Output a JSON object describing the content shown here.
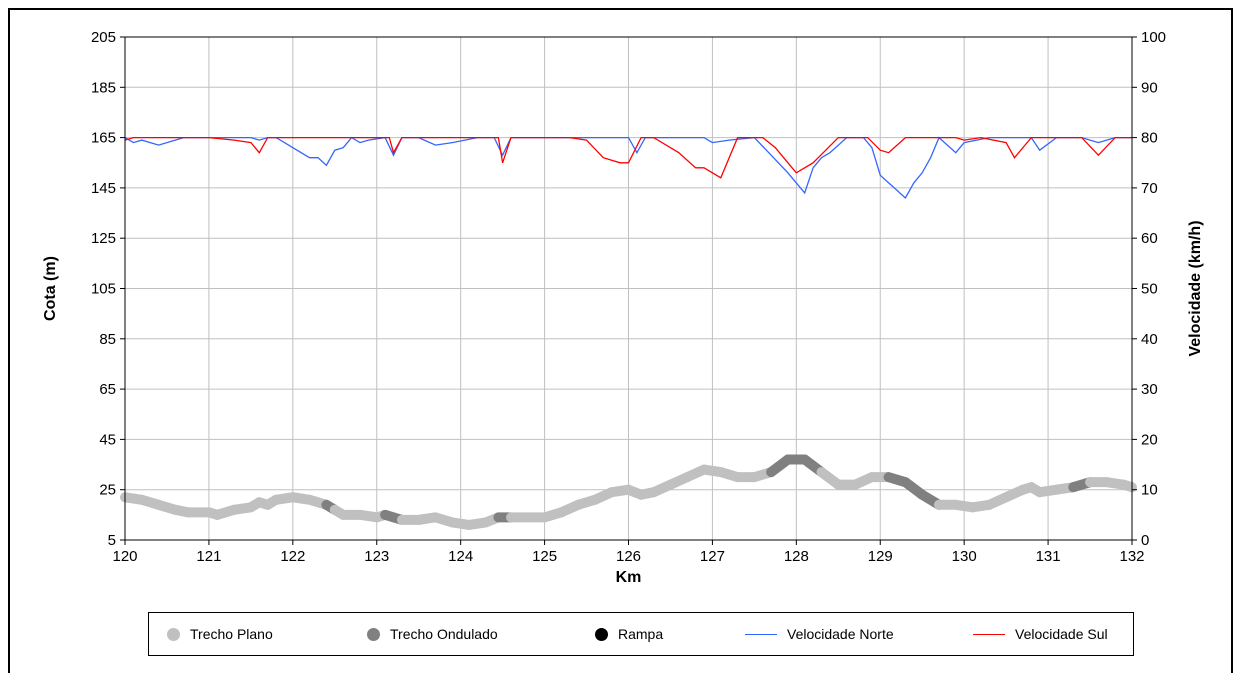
{
  "chart_data": {
    "type": "line",
    "xlabel": "Km",
    "ylabel_left": "Cota (m)",
    "ylabel_right": "Velocidade (km/h)",
    "xlim": [
      120,
      132
    ],
    "ylim_left": [
      5,
      205
    ],
    "ylim_right": [
      0,
      100
    ],
    "x_ticks": [
      "120",
      "121",
      "122",
      "123",
      "124",
      "125",
      "126",
      "127",
      "128",
      "129",
      "130",
      "131",
      "132"
    ],
    "y_left_ticks": [
      "5",
      "25",
      "45",
      "65",
      "85",
      "105",
      "125",
      "145",
      "165",
      "185",
      "205"
    ],
    "y_right_ticks": [
      "0",
      "10",
      "20",
      "30",
      "40",
      "50",
      "60",
      "70",
      "80",
      "90",
      "100"
    ],
    "grid": true,
    "legend_position": "bottom",
    "colors": {
      "trecho_plano": "#c0c0c0",
      "trecho_ondulado": "#808080",
      "rampa": "#000000",
      "velocidade_norte": "#3366ff",
      "velocidade_sul": "#ff0000"
    },
    "elevation": {
      "x": [
        120,
        120.2,
        120.4,
        120.6,
        120.75,
        121,
        121.1,
        121.3,
        121.5,
        121.6,
        121.7,
        121.8,
        122,
        122.2,
        122.4,
        122.5,
        122.6,
        122.8,
        123,
        123.1,
        123.2,
        123.3,
        123.5,
        123.7,
        123.9,
        124.1,
        124.3,
        124.45,
        124.6,
        124.8,
        125,
        125.2,
        125.4,
        125.6,
        125.8,
        126,
        126.15,
        126.3,
        126.5,
        126.7,
        126.9,
        127.1,
        127.3,
        127.5,
        127.7,
        127.9,
        128.1,
        128.3,
        128.5,
        128.7,
        128.9,
        129.1,
        129.3,
        129.5,
        129.7,
        129.9,
        130.1,
        130.3,
        130.5,
        130.7,
        130.8,
        130.9,
        131.1,
        131.3,
        131.5,
        131.7,
        131.9,
        132
      ],
      "y": [
        22,
        21,
        19,
        17,
        16,
        16,
        15,
        17,
        18,
        20,
        19,
        21,
        22,
        21,
        19,
        17,
        15,
        15,
        14,
        15,
        14,
        13,
        13,
        14,
        12,
        11,
        12,
        14,
        14,
        14,
        14,
        16,
        19,
        21,
        24,
        25,
        23,
        24,
        27,
        30,
        33,
        32,
        30,
        30,
        32,
        37,
        37,
        32,
        27,
        27,
        30,
        30,
        28,
        23,
        19,
        19,
        18,
        19,
        22,
        25,
        26,
        24,
        25,
        26,
        28,
        28,
        27,
        26
      ],
      "segments": [
        "Trecho Plano",
        "Trecho Plano",
        "Trecho Plano",
        "Trecho Plano",
        "Trecho Plano",
        "Trecho Plano",
        "Trecho Plano",
        "Trecho Plano",
        "Trecho Plano",
        "Trecho Plano",
        "Trecho Plano",
        "Trecho Plano",
        "Trecho Plano",
        "Trecho Plano",
        "Trecho Ondulado",
        "Trecho Plano",
        "Trecho Plano",
        "Trecho Plano",
        "Trecho Plano",
        "Trecho Ondulado",
        "Trecho Ondulado",
        "Trecho Plano",
        "Trecho Plano",
        "Trecho Plano",
        "Trecho Plano",
        "Trecho Plano",
        "Trecho Plano",
        "Trecho Ondulado",
        "Trecho Plano",
        "Trecho Plano",
        "Trecho Plano",
        "Trecho Plano",
        "Trecho Plano",
        "Trecho Plano",
        "Trecho Plano",
        "Trecho Plano",
        "Trecho Plano",
        "Trecho Plano",
        "Trecho Plano",
        "Trecho Plano",
        "Trecho Plano",
        "Trecho Plano",
        "Trecho Plano",
        "Trecho Plano",
        "Trecho Ondulado",
        "Trecho Ondulado",
        "Trecho Ondulado",
        "Trecho Plano",
        "Trecho Plano",
        "Trecho Plano",
        "Trecho Plano",
        "Trecho Ondulado",
        "Trecho Ondulado",
        "Trecho Ondulado",
        "Trecho Plano",
        "Trecho Plano",
        "Trecho Plano",
        "Trecho Plano",
        "Trecho Plano",
        "Trecho Plano",
        "Trecho Plano",
        "Trecho Plano",
        "Trecho Plano",
        "Trecho Ondulado",
        "Trecho Plano",
        "Trecho Plano",
        "Trecho Plano"
      ]
    },
    "series": [
      {
        "name": "Velocidade Norte",
        "x": [
          120,
          120.1,
          120.2,
          120.4,
          120.6,
          120.7,
          121,
          121.2,
          121.5,
          121.6,
          121.7,
          121.8,
          121.9,
          122,
          122.2,
          122.3,
          122.4,
          122.5,
          122.6,
          122.7,
          122.8,
          122.9,
          123.1,
          123.2,
          123.3,
          123.5,
          123.7,
          123.9,
          124.2,
          124.4,
          124.5,
          124.6,
          124.8,
          125,
          125.3,
          125.6,
          126,
          126.1,
          126.2,
          126.5,
          126.9,
          127,
          127.2,
          127.5,
          127.9,
          128.0,
          128.1,
          128.2,
          128.3,
          128.4,
          128.6,
          128.8,
          128.9,
          129.0,
          129.3,
          129.4,
          129.5,
          129.6,
          129.7,
          129.9,
          130.0,
          130.3,
          130.6,
          130.8,
          130.9,
          131.1,
          131.4,
          131.6,
          131.8,
          132
        ],
        "y": [
          80,
          79,
          79.5,
          78.5,
          79.5,
          80,
          80,
          80,
          80,
          79.5,
          80,
          80,
          79,
          78,
          76,
          76,
          74.5,
          77.5,
          78,
          80,
          79,
          79.5,
          80,
          76.5,
          80,
          80,
          78.5,
          79,
          80,
          80,
          76.5,
          80,
          80,
          80,
          80,
          80,
          80,
          77,
          80,
          80,
          80,
          79,
          79.5,
          80,
          73,
          71,
          69,
          74,
          76,
          77,
          80,
          80,
          78,
          72.5,
          68,
          71,
          73,
          76,
          80,
          77,
          79,
          80,
          80,
          80,
          77.5,
          80,
          80,
          79,
          80,
          80
        ]
      },
      {
        "name": "Velocidade Sul",
        "x": [
          120,
          120.1,
          120.3,
          120.6,
          121,
          121.3,
          121.5,
          121.6,
          121.7,
          121.8,
          121.9,
          122,
          122.3,
          122.6,
          122.9,
          123,
          123.15,
          123.2,
          123.3,
          123.5,
          123.7,
          124,
          124.3,
          124.45,
          124.5,
          124.6,
          124.8,
          125,
          125.2,
          125.3,
          125.5,
          125.7,
          125.9,
          126,
          126.15,
          126.3,
          126.6,
          126.8,
          126.9,
          127.1,
          127.3,
          127.6,
          127.75,
          127.9,
          128.0,
          128.2,
          128.5,
          128.7,
          128.85,
          129.0,
          129.1,
          129.3,
          129.6,
          129.9,
          130.0,
          130.2,
          130.5,
          130.6,
          130.8,
          130.9,
          131.2,
          131.4,
          131.6,
          131.8,
          132
        ],
        "y": [
          79.5,
          80,
          80,
          80,
          80,
          79.5,
          79,
          77,
          80,
          80,
          80,
          80,
          80,
          80,
          80,
          80,
          80,
          77,
          80,
          80,
          80,
          80,
          80,
          80,
          75,
          80,
          80,
          80,
          80,
          80,
          79.5,
          76,
          75,
          75,
          80,
          80,
          77,
          74,
          74,
          72,
          80,
          80,
          78,
          75,
          73,
          75,
          80,
          80,
          80,
          77.5,
          77,
          80,
          80,
          80,
          79.5,
          80,
          79,
          76,
          80,
          80,
          80,
          80,
          76.5,
          80,
          80
        ]
      }
    ],
    "legend": [
      "Trecho Plano",
      "Trecho Ondulado",
      "Rampa",
      "Velocidade Norte",
      "Velocidade Sul"
    ]
  }
}
